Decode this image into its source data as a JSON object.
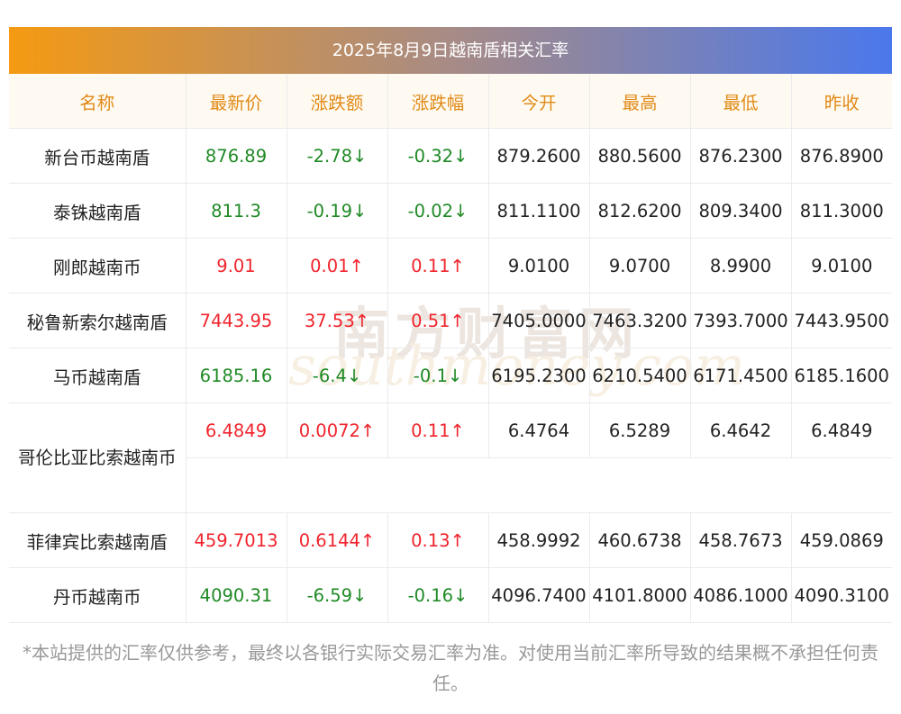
{
  "title": "2025年8月9日越南盾相关汇率",
  "watermark": {
    "cn": "南方财富网",
    "en": "southmoney.com"
  },
  "columns": [
    "名称",
    "最新价",
    "涨跌额",
    "涨跌幅",
    "今开",
    "最高",
    "最低",
    "昨收"
  ],
  "rows": [
    {
      "name": "新台币越南盾",
      "price": "876.89",
      "change": "-2.78↓",
      "pct": "-0.32↓",
      "open": "879.2600",
      "high": "880.5600",
      "low": "876.2300",
      "prev": "876.8900",
      "trend": "down"
    },
    {
      "name": "泰铢越南盾",
      "price": "811.3",
      "change": "-0.19↓",
      "pct": "-0.02↓",
      "open": "811.1100",
      "high": "812.6200",
      "low": "809.3400",
      "prev": "811.3000",
      "trend": "down"
    },
    {
      "name": "刚郎越南币",
      "price": "9.01",
      "change": "0.01↑",
      "pct": "0.11↑",
      "open": "9.0100",
      "high": "9.0700",
      "low": "8.9900",
      "prev": "9.0100",
      "trend": "up"
    },
    {
      "name": "秘鲁新索尔越南盾",
      "price": "7443.95",
      "change": "37.53↑",
      "pct": "0.51↑",
      "open": "7405.0000",
      "high": "7463.3200",
      "low": "7393.7000",
      "prev": "7443.9500",
      "trend": "up"
    },
    {
      "name": "马币越南盾",
      "price": "6185.16",
      "change": "-6.4↓",
      "pct": "-0.1↓",
      "open": "6195.2300",
      "high": "6210.5400",
      "low": "6171.4500",
      "prev": "6185.1600",
      "trend": "down"
    },
    {
      "name": "哥伦比亚比索越南币",
      "price": "6.4849",
      "change": "0.0072↑",
      "pct": "0.11↑",
      "open": "6.4764",
      "high": "6.5289",
      "low": "6.4642",
      "prev": "6.4849",
      "trend": "up"
    },
    {
      "name": "菲律宾比索越南盾",
      "price": "459.7013",
      "change": "0.6144↑",
      "pct": "0.13↑",
      "open": "458.9992",
      "high": "460.6738",
      "low": "458.7673",
      "prev": "459.0869",
      "trend": "up"
    },
    {
      "name": "丹币越南币",
      "price": "4090.31",
      "change": "-6.59↓",
      "pct": "-0.16↓",
      "open": "4096.7400",
      "high": "4101.8000",
      "low": "4086.1000",
      "prev": "4090.3100",
      "trend": "down"
    }
  ],
  "footnote": "*本站提供的汇率仅供参考，最终以各银行实际交易汇率为准。对使用当前汇率所导致的结果概不承担任何责任。",
  "colors": {
    "up": "#f0242d",
    "down": "#1f8a25",
    "header_text": "#e08a17",
    "gradient_start": "#f59a12",
    "gradient_end": "#4a78ec"
  }
}
